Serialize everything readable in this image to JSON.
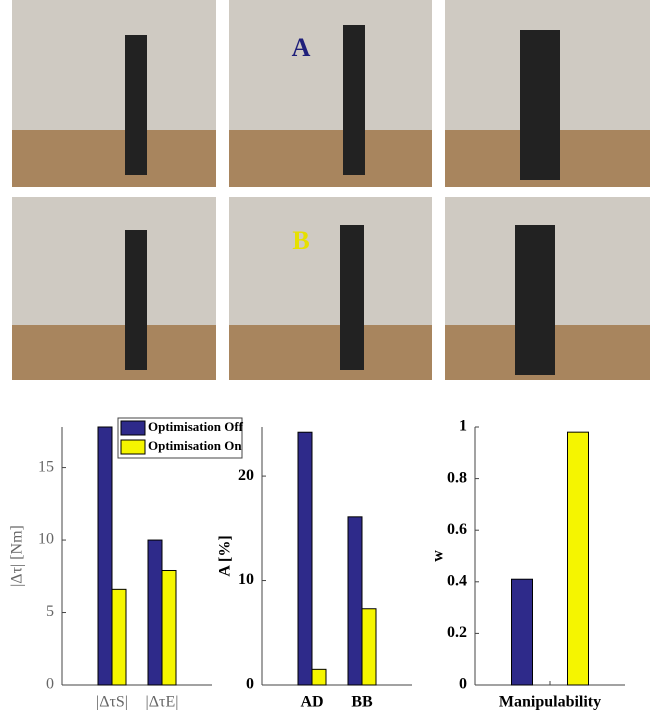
{
  "photo_labels": [
    "A",
    "B"
  ],
  "chart_data": [
    {
      "type": "bar",
      "ylabel": "|Δτ| [Nm]",
      "categories": [
        "|ΔτS|",
        "|ΔτE|"
      ],
      "series": [
        {
          "name": "Optimisation Off",
          "color": "#2e2a8a",
          "values": [
            17.8,
            10.0
          ]
        },
        {
          "name": "Optimisation On",
          "color": "#f5f500",
          "values": [
            6.6,
            7.9
          ]
        }
      ],
      "ylim": [
        0,
        17.8
      ],
      "yticks": [
        0,
        5,
        10,
        15
      ],
      "legend": "upper left"
    },
    {
      "type": "bar",
      "ylabel": "A [%]",
      "categories": [
        "AD",
        "BB"
      ],
      "series": [
        {
          "name": "Optimisation Off",
          "color": "#2e2a8a",
          "values": [
            24.2,
            16.1
          ]
        },
        {
          "name": "Optimisation On",
          "color": "#f5f500",
          "values": [
            1.5,
            7.3
          ]
        }
      ],
      "ylim": [
        0,
        24.7
      ],
      "yticks": [
        0,
        10,
        20
      ]
    },
    {
      "type": "bar",
      "ylabel": "w",
      "categories": [
        "Manipulability"
      ],
      "series": [
        {
          "name": "Optimisation Off",
          "color": "#2e2a8a",
          "values": [
            0.41
          ]
        },
        {
          "name": "Optimisation On",
          "color": "#f5f500",
          "values": [
            0.98
          ]
        }
      ],
      "ylim": [
        0,
        1
      ],
      "yticks": [
        0,
        0.2,
        0.4,
        0.6,
        0.8,
        1
      ]
    }
  ]
}
